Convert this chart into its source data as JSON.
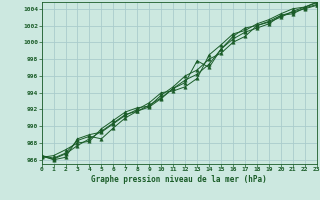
{
  "title": "Graphe pression niveau de la mer (hPa)",
  "background_color": "#cce8e0",
  "grid_color": "#aacccc",
  "line_color": "#1a5c28",
  "marker_color": "#1a5c28",
  "xlim": [
    0,
    23
  ],
  "ylim": [
    985.5,
    1004.8
  ],
  "yticks": [
    986,
    988,
    990,
    992,
    994,
    996,
    998,
    1000,
    1002,
    1004
  ],
  "xticks": [
    0,
    1,
    2,
    3,
    4,
    5,
    6,
    7,
    8,
    9,
    10,
    11,
    12,
    13,
    14,
    15,
    16,
    17,
    18,
    19,
    20,
    21,
    22,
    23
  ],
  "xtick_labels": [
    "0",
    "1",
    "2",
    "3",
    "4",
    "5",
    "6",
    "7",
    "8",
    "9",
    "10",
    "11",
    "12",
    "13",
    "14",
    "15",
    "16",
    "17",
    "18",
    "19",
    "20",
    "21",
    "22",
    "23"
  ],
  "series": [
    [
      986.5,
      986.2,
      986.8,
      988.3,
      988.8,
      988.5,
      989.8,
      991.0,
      991.8,
      992.3,
      993.3,
      994.5,
      995.2,
      997.8,
      997.0,
      999.2,
      1000.4,
      1001.2,
      1001.7,
      1002.2,
      1003.2,
      1003.6,
      1004.0,
      1004.4
    ],
    [
      986.5,
      986.0,
      986.3,
      988.5,
      989.0,
      989.3,
      990.3,
      991.3,
      992.0,
      992.8,
      994.0,
      994.2,
      994.7,
      995.7,
      998.5,
      999.7,
      1001.0,
      1001.4,
      1002.2,
      1002.7,
      1003.4,
      1004.0,
      1004.2,
      1004.7
    ],
    [
      986.3,
      986.5,
      987.2,
      988.0,
      988.2,
      989.7,
      990.7,
      991.7,
      992.2,
      992.4,
      993.7,
      994.7,
      996.0,
      996.7,
      998.0,
      998.7,
      1000.0,
      1000.7,
      1002.0,
      1002.4,
      1003.0,
      1003.7,
      1004.2,
      1004.8
    ],
    [
      986.4,
      986.1,
      986.7,
      987.7,
      988.5,
      989.4,
      990.4,
      991.4,
      991.8,
      992.5,
      993.4,
      994.5,
      995.5,
      996.2,
      997.4,
      999.2,
      1000.7,
      1001.7,
      1002.0,
      1002.5,
      1003.2,
      1003.4,
      1004.1,
      1004.5
    ]
  ]
}
